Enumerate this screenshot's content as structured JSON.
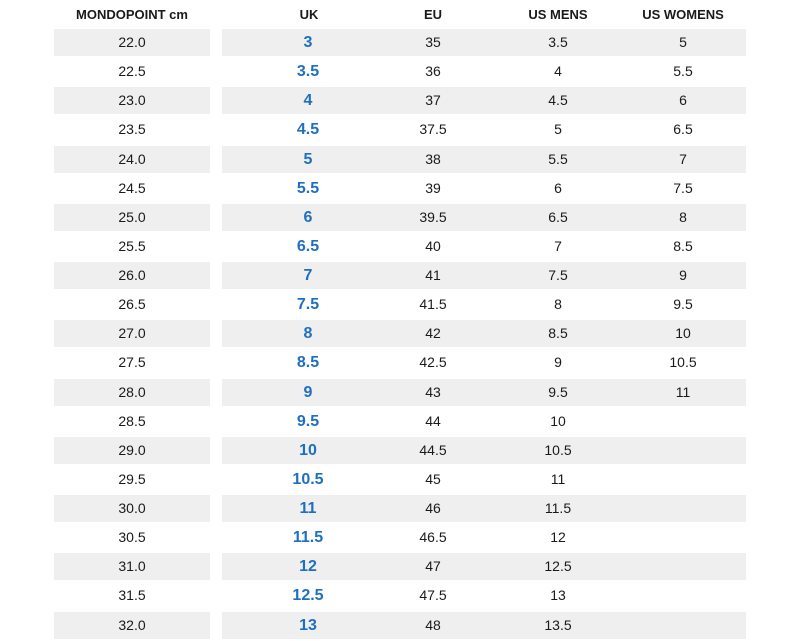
{
  "header": {
    "mondopoint": "MONDOPOINT cm",
    "uk": "UK",
    "eu": "EU",
    "us_mens": "US MENS",
    "us_womens": "US WOMENS"
  },
  "colors": {
    "uk_accent": "#1f6fc0",
    "shade": "#efefef"
  },
  "rows": [
    {
      "mondo": "22.0",
      "uk": "3",
      "eu": "35",
      "usm": "3.5",
      "usw": "5"
    },
    {
      "mondo": "22.5",
      "uk": "3.5",
      "eu": "36",
      "usm": "4",
      "usw": "5.5"
    },
    {
      "mondo": "23.0",
      "uk": "4",
      "eu": "37",
      "usm": "4.5",
      "usw": "6"
    },
    {
      "mondo": "23.5",
      "uk": "4.5",
      "eu": "37.5",
      "usm": "5",
      "usw": "6.5"
    },
    {
      "mondo": "24.0",
      "uk": "5",
      "eu": "38",
      "usm": "5.5",
      "usw": "7"
    },
    {
      "mondo": "24.5",
      "uk": "5.5",
      "eu": "39",
      "usm": "6",
      "usw": "7.5"
    },
    {
      "mondo": "25.0",
      "uk": "6",
      "eu": "39.5",
      "usm": "6.5",
      "usw": "8"
    },
    {
      "mondo": "25.5",
      "uk": "6.5",
      "eu": "40",
      "usm": "7",
      "usw": "8.5"
    },
    {
      "mondo": "26.0",
      "uk": "7",
      "eu": "41",
      "usm": "7.5",
      "usw": "9"
    },
    {
      "mondo": "26.5",
      "uk": "7.5",
      "eu": "41.5",
      "usm": "8",
      "usw": "9.5"
    },
    {
      "mondo": "27.0",
      "uk": "8",
      "eu": "42",
      "usm": "8.5",
      "usw": "10"
    },
    {
      "mondo": "27.5",
      "uk": "8.5",
      "eu": "42.5",
      "usm": "9",
      "usw": "10.5"
    },
    {
      "mondo": "28.0",
      "uk": "9",
      "eu": "43",
      "usm": "9.5",
      "usw": "11"
    },
    {
      "mondo": "28.5",
      "uk": "9.5",
      "eu": "44",
      "usm": "10",
      "usw": ""
    },
    {
      "mondo": "29.0",
      "uk": "10",
      "eu": "44.5",
      "usm": "10.5",
      "usw": ""
    },
    {
      "mondo": "29.5",
      "uk": "10.5",
      "eu": "45",
      "usm": "11",
      "usw": ""
    },
    {
      "mondo": "30.0",
      "uk": "11",
      "eu": "46",
      "usm": "11.5",
      "usw": ""
    },
    {
      "mondo": "30.5",
      "uk": "11.5",
      "eu": "46.5",
      "usm": "12",
      "usw": ""
    },
    {
      "mondo": "31.0",
      "uk": "12",
      "eu": "47",
      "usm": "12.5",
      "usw": ""
    },
    {
      "mondo": "31.5",
      "uk": "12.5",
      "eu": "47.5",
      "usm": "13",
      "usw": ""
    },
    {
      "mondo": "32.0",
      "uk": "13",
      "eu": "48",
      "usm": "13.5",
      "usw": ""
    }
  ]
}
